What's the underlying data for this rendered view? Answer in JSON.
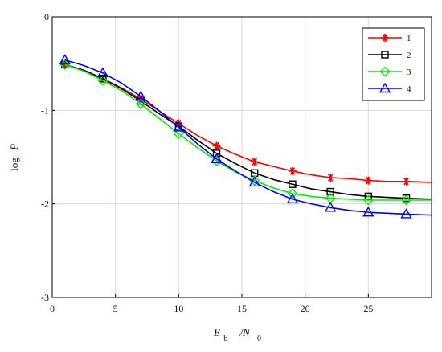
{
  "chart_data": {
    "type": "line",
    "title": "",
    "xlabel": {
      "main": "E",
      "sub1": "b",
      "mid": "/N",
      "sub2": "0"
    },
    "ylabel": {
      "main": "log",
      "var": "P"
    },
    "xlim": [
      0,
      30
    ],
    "ylim": [
      -3,
      0
    ],
    "xticks": [
      0,
      5,
      10,
      15,
      20,
      25
    ],
    "yticks": [
      0,
      -1,
      -2,
      -3
    ],
    "xtick_labels": [
      "0",
      "5",
      "10",
      "15",
      "20",
      "25"
    ],
    "ytick_labels": [
      "0",
      "-1",
      "-2",
      "-3"
    ],
    "grid": true,
    "legend_position": "top-right",
    "series": [
      {
        "name": "1",
        "color": "#ff0000",
        "marker": "asterisk",
        "markers_x": [
          1,
          4,
          7,
          10,
          13,
          16,
          19,
          22,
          25,
          28
        ],
        "markers_y": [
          -0.51,
          -0.66,
          -0.88,
          -1.14,
          -1.38,
          -1.55,
          -1.65,
          -1.72,
          -1.75,
          -1.76
        ],
        "x": [
          1,
          2.5,
          4,
          5.5,
          7,
          8.5,
          10,
          11.5,
          13,
          14.5,
          16,
          17.5,
          19,
          20.5,
          22,
          23.5,
          25,
          26.5,
          28,
          30
        ],
        "y": [
          -0.51,
          -0.57,
          -0.66,
          -0.76,
          -0.88,
          -1.01,
          -1.14,
          -1.27,
          -1.38,
          -1.47,
          -1.55,
          -1.6,
          -1.65,
          -1.69,
          -1.72,
          -1.73,
          -1.75,
          -1.76,
          -1.76,
          -1.77
        ]
      },
      {
        "name": "2",
        "color": "#000000",
        "marker": "square",
        "markers_x": [
          1,
          4,
          7,
          10,
          13,
          16,
          19,
          22,
          25,
          28
        ],
        "markers_y": [
          -0.51,
          -0.66,
          -0.9,
          -1.17,
          -1.46,
          -1.67,
          -1.79,
          -1.87,
          -1.92,
          -1.94
        ],
        "x": [
          1,
          2.5,
          4,
          5.5,
          7,
          8.5,
          10,
          11.5,
          13,
          14.5,
          16,
          17.5,
          19,
          20.5,
          22,
          23.5,
          25,
          26.5,
          28,
          30
        ],
        "y": [
          -0.51,
          -0.57,
          -0.66,
          -0.77,
          -0.9,
          -1.04,
          -1.17,
          -1.32,
          -1.46,
          -1.57,
          -1.67,
          -1.74,
          -1.79,
          -1.84,
          -1.87,
          -1.9,
          -1.92,
          -1.93,
          -1.94,
          -1.95
        ]
      },
      {
        "name": "3",
        "color": "#00ee00",
        "marker": "diamond",
        "markers_x": [
          1,
          4,
          7,
          10,
          13,
          16,
          19,
          22,
          25,
          28
        ],
        "markers_y": [
          -0.51,
          -0.68,
          -0.93,
          -1.25,
          -1.54,
          -1.75,
          -1.89,
          -1.94,
          -1.96,
          -1.96
        ],
        "x": [
          1,
          2.5,
          4,
          5.5,
          7,
          8.5,
          10,
          11.5,
          13,
          14.5,
          16,
          17.5,
          19,
          20.5,
          22,
          23.5,
          25,
          26.5,
          28,
          30
        ],
        "y": [
          -0.51,
          -0.58,
          -0.68,
          -0.79,
          -0.93,
          -1.09,
          -1.25,
          -1.4,
          -1.54,
          -1.66,
          -1.75,
          -1.83,
          -1.89,
          -1.92,
          -1.94,
          -1.95,
          -1.96,
          -1.96,
          -1.96,
          -1.96
        ]
      },
      {
        "name": "4",
        "color": "#0000ff",
        "marker": "triangle",
        "markers_x": [
          1,
          4,
          7,
          10,
          13,
          16,
          19,
          22,
          25,
          28
        ],
        "markers_y": [
          -0.46,
          -0.6,
          -0.85,
          -1.18,
          -1.52,
          -1.77,
          -1.95,
          -2.04,
          -2.09,
          -2.11
        ],
        "x": [
          1,
          2.5,
          4,
          5.5,
          7,
          8.5,
          10,
          11.5,
          13,
          14.5,
          16,
          17.5,
          19,
          20.5,
          22,
          23.5,
          25,
          26.5,
          28,
          30
        ],
        "y": [
          -0.46,
          -0.52,
          -0.6,
          -0.71,
          -0.85,
          -1.01,
          -1.18,
          -1.36,
          -1.52,
          -1.65,
          -1.77,
          -1.87,
          -1.95,
          -2.0,
          -2.04,
          -2.07,
          -2.09,
          -2.1,
          -2.11,
          -2.12
        ]
      }
    ]
  }
}
